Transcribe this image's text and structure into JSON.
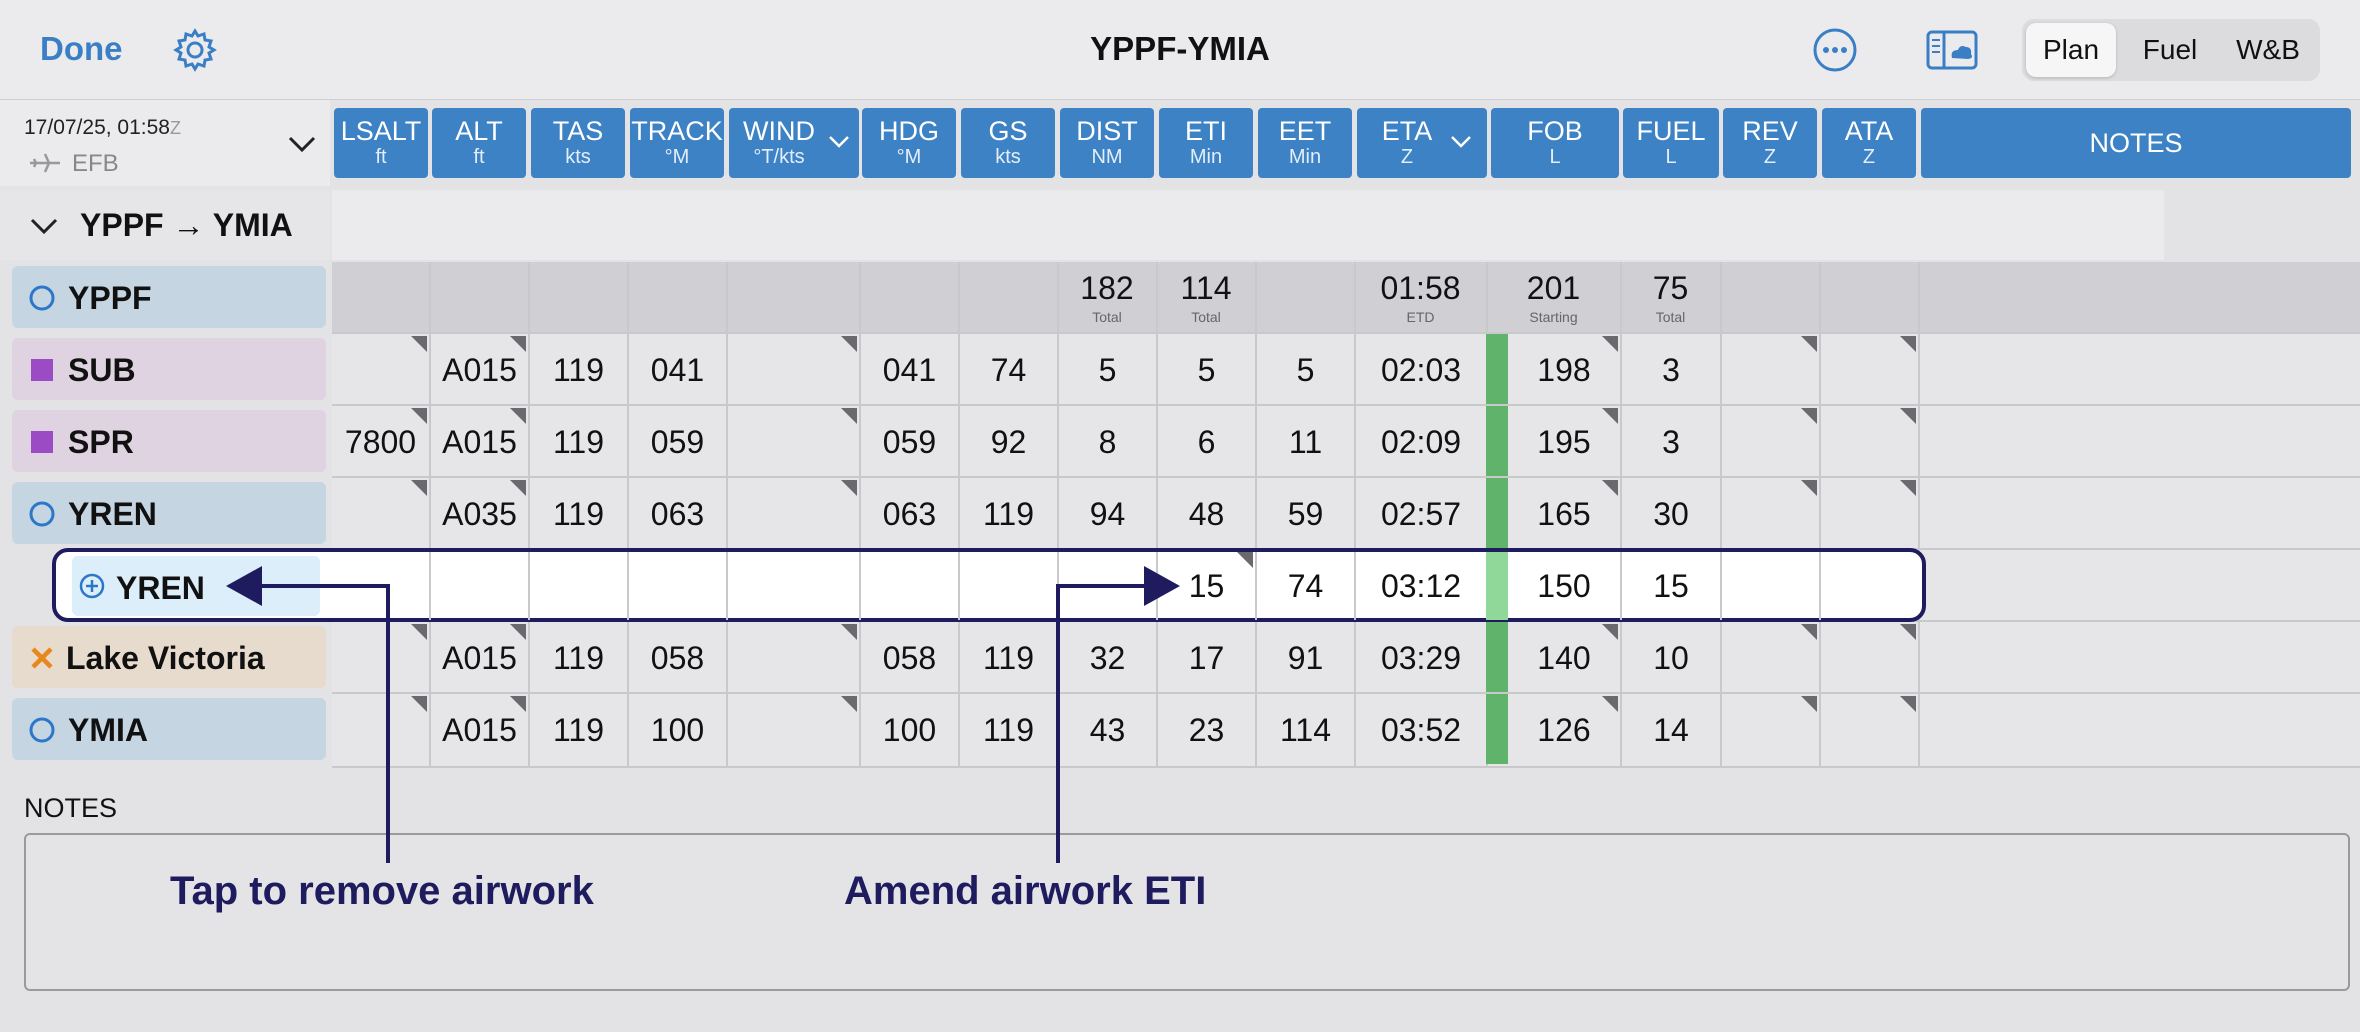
{
  "toolbar": {
    "done_label": "Done",
    "title": "YPPF-YMIA",
    "tabs": [
      {
        "label": "Plan",
        "active": true
      },
      {
        "label": "Fuel",
        "active": false
      },
      {
        "label": "W&B",
        "active": false
      }
    ],
    "icons": [
      "gear-icon",
      "more-icon",
      "efb-panel-icon"
    ]
  },
  "header": {
    "datetime": "17/07/25, 01:58",
    "datetime_suffix": "Z",
    "source": "EFB"
  },
  "columns": [
    {
      "label": "LSALT",
      "unit": "ft"
    },
    {
      "label": "ALT",
      "unit": "ft"
    },
    {
      "label": "TAS",
      "unit": "kts"
    },
    {
      "label": "TRACK",
      "unit": "°M"
    },
    {
      "label": "WIND",
      "unit": "°T/kts",
      "dropdown": true
    },
    {
      "label": "HDG",
      "unit": "°M"
    },
    {
      "label": "GS",
      "unit": "kts"
    },
    {
      "label": "DIST",
      "unit": "NM"
    },
    {
      "label": "ETI",
      "unit": "Min"
    },
    {
      "label": "EET",
      "unit": "Min"
    },
    {
      "label": "ETA",
      "unit": "Z",
      "dropdown": true
    },
    {
      "label": "FOB",
      "unit": "L"
    },
    {
      "label": "FUEL",
      "unit": "L"
    },
    {
      "label": "REV",
      "unit": "Z"
    },
    {
      "label": "ATA",
      "unit": "Z"
    },
    {
      "label": "NOTES",
      "unit": ""
    }
  ],
  "route": {
    "label": "YPPF → YMIA"
  },
  "totals": {
    "name": "YPPF",
    "dist": {
      "value": "182",
      "sub": "Total"
    },
    "eti": {
      "value": "114",
      "sub": "Total"
    },
    "eta": {
      "value": "01:58",
      "sub": "ETD"
    },
    "fob": {
      "value": "201",
      "sub": "Starting"
    },
    "fuel": {
      "value": "75",
      "sub": "Total"
    }
  },
  "rows": [
    {
      "name": "SUB",
      "lsalt": "",
      "alt": "A015",
      "tas": "119",
      "track": "041",
      "wind": "",
      "hdg": "041",
      "gs": "74",
      "dist": "5",
      "eti": "5",
      "eet": "5",
      "eta": "02:03",
      "fob": "198",
      "fuel": "3"
    },
    {
      "name": "SPR",
      "lsalt": "7800",
      "alt": "A015",
      "tas": "119",
      "track": "059",
      "wind": "",
      "hdg": "059",
      "gs": "92",
      "dist": "8",
      "eti": "6",
      "eet": "11",
      "eta": "02:09",
      "fob": "195",
      "fuel": "3"
    },
    {
      "name": "YREN",
      "lsalt": "",
      "alt": "A035",
      "tas": "119",
      "track": "063",
      "wind": "",
      "hdg": "063",
      "gs": "119",
      "dist": "94",
      "eti": "48",
      "eet": "59",
      "eta": "02:57",
      "fob": "165",
      "fuel": "30"
    },
    {
      "name": "YREN",
      "lsalt": "",
      "alt": "",
      "tas": "",
      "track": "",
      "wind": "",
      "hdg": "",
      "gs": "",
      "dist": "",
      "eti": "15",
      "eet": "74",
      "eta": "03:12",
      "fob": "150",
      "fuel": "15"
    },
    {
      "name": "Lake Victoria",
      "lsalt": "",
      "alt": "A015",
      "tas": "119",
      "track": "058",
      "wind": "",
      "hdg": "058",
      "gs": "119",
      "dist": "32",
      "eti": "17",
      "eet": "91",
      "eta": "03:29",
      "fob": "140",
      "fuel": "10"
    },
    {
      "name": "YMIA",
      "lsalt": "",
      "alt": "A015",
      "tas": "119",
      "track": "100",
      "wind": "",
      "hdg": "100",
      "gs": "119",
      "dist": "43",
      "eti": "23",
      "eet": "114",
      "eta": "03:52",
      "fob": "126",
      "fuel": "14"
    }
  ],
  "notes": {
    "label": "NOTES",
    "value": ""
  },
  "annotations": {
    "remove": "Tap to remove airwork",
    "amend": "Amend airwork ETI"
  },
  "colors": {
    "accent": "#3d82c4",
    "annotation": "#1e1c5e",
    "fuel_ok": "#5fb36b",
    "airport": "#c6d5e2",
    "vor": "#dfd3e2",
    "vfr": "#e6dbcc",
    "airwork": "#ddeefb"
  }
}
